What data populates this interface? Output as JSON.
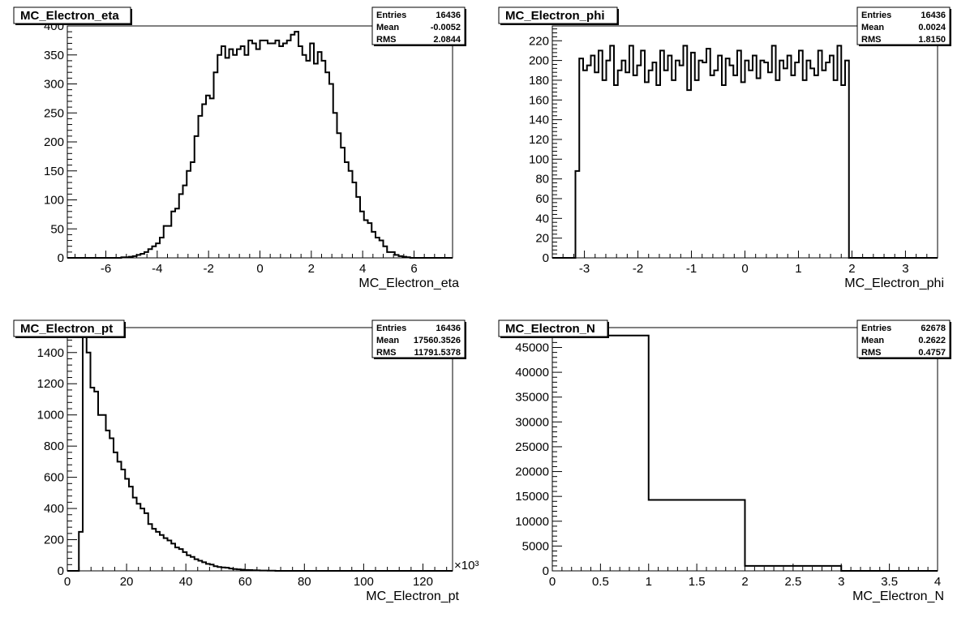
{
  "chart_data": [
    {
      "type": "histogram",
      "title": "MC_Electron_eta",
      "xlabel": "MC_Electron_eta",
      "xlim": [
        -7.5,
        7.5
      ],
      "ylim": [
        0,
        400
      ],
      "xticks": [
        -6,
        -4,
        -2,
        0,
        2,
        4,
        6
      ],
      "yticks": [
        0,
        50,
        100,
        150,
        200,
        250,
        300,
        350,
        400
      ],
      "x_multiplier": "",
      "bin_edges_start": -7.5,
      "bin_width": 0.15,
      "values": [
        0,
        0,
        0,
        0,
        0,
        0,
        0,
        0,
        0,
        0,
        0,
        0,
        0,
        0,
        1,
        1,
        2,
        3,
        5,
        7,
        10,
        15,
        20,
        25,
        35,
        55,
        55,
        80,
        85,
        110,
        125,
        150,
        165,
        210,
        245,
        265,
        280,
        275,
        320,
        350,
        365,
        345,
        360,
        350,
        360,
        365,
        350,
        375,
        370,
        360,
        375,
        375,
        370,
        370,
        375,
        365,
        370,
        375,
        385,
        390,
        365,
        350,
        340,
        370,
        335,
        355,
        340,
        320,
        300,
        250,
        215,
        190,
        165,
        150,
        130,
        105,
        80,
        65,
        60,
        45,
        35,
        30,
        20,
        10,
        10,
        5,
        3,
        2,
        1,
        0,
        0,
        0,
        0,
        0,
        0,
        0,
        0,
        0,
        0,
        0
      ],
      "stats": {
        "labels": [
          "Entries",
          "Mean",
          "RMS"
        ],
        "values": [
          "16436",
          "-0.0052",
          "2.0844"
        ]
      }
    },
    {
      "type": "histogram",
      "title": "MC_Electron_phi",
      "xlabel": "MC_Electron_phi",
      "xlim": [
        -3.6,
        3.6
      ],
      "ylim": [
        0,
        235
      ],
      "xticks": [
        -3,
        -2,
        -1,
        0,
        1,
        2,
        3
      ],
      "yticks": [
        0,
        20,
        40,
        60,
        80,
        100,
        120,
        140,
        160,
        180,
        200,
        220
      ],
      "x_multiplier": "",
      "bin_edges_start": -3.6,
      "bin_width": 0.072,
      "values": [
        0,
        0,
        0,
        0,
        0,
        0,
        88,
        202,
        190,
        195,
        205,
        188,
        210,
        180,
        200,
        215,
        175,
        190,
        200,
        188,
        215,
        185,
        195,
        210,
        178,
        190,
        198,
        175,
        210,
        190,
        205,
        180,
        200,
        195,
        215,
        170,
        208,
        180,
        200,
        198,
        212,
        185,
        190,
        205,
        175,
        202,
        195,
        185,
        210,
        178,
        200,
        190,
        205,
        182,
        200,
        198,
        188,
        215,
        180,
        200,
        192,
        205,
        185,
        198,
        210,
        180,
        200,
        192,
        185,
        210,
        190,
        198,
        205,
        180,
        215,
        175,
        200,
        0,
        0,
        0,
        0,
        0,
        0,
        0,
        0,
        0,
        0,
        0,
        0,
        0,
        0,
        0,
        0,
        0,
        0,
        0,
        0,
        0,
        0,
        0
      ],
      "stats": {
        "labels": [
          "Entries",
          "Mean",
          "RMS"
        ],
        "values": [
          "16436",
          "0.0024",
          "1.8150"
        ]
      }
    },
    {
      "type": "histogram",
      "title": "MC_Electron_pt",
      "xlabel": "MC_Electron_pt",
      "xlim": [
        0,
        130
      ],
      "ylim": [
        0,
        1560
      ],
      "xticks": [
        0,
        20,
        40,
        60,
        80,
        100,
        120
      ],
      "yticks": [
        0,
        200,
        400,
        600,
        800,
        1000,
        1200,
        1400
      ],
      "x_multiplier": "×10³",
      "bin_edges_start": 0,
      "bin_width": 1.3,
      "values": [
        0,
        0,
        0,
        250,
        1525,
        1400,
        1175,
        1150,
        1000,
        1000,
        900,
        850,
        760,
        700,
        650,
        590,
        540,
        470,
        430,
        400,
        370,
        300,
        270,
        250,
        230,
        210,
        195,
        175,
        150,
        140,
        120,
        100,
        90,
        75,
        65,
        55,
        45,
        40,
        30,
        25,
        22,
        20,
        15,
        12,
        10,
        8,
        6,
        5,
        4,
        3,
        2,
        2,
        1,
        1,
        0,
        0,
        0,
        0,
        0,
        0,
        0,
        0,
        0,
        0,
        0,
        0,
        0,
        0,
        0,
        0,
        0,
        0,
        0,
        0,
        0,
        0,
        0,
        0,
        0,
        0,
        0,
        0,
        0,
        0,
        0,
        0,
        0,
        0,
        0,
        0,
        0,
        0,
        0,
        0,
        0,
        0,
        0,
        0,
        0,
        0
      ],
      "stats": {
        "labels": [
          "Entries",
          "Mean",
          "RMS"
        ],
        "values": [
          "16436",
          "17560.3526",
          "11791.5378"
        ]
      }
    },
    {
      "type": "histogram",
      "title": "MC_Electron_N",
      "xlabel": "MC_Electron_N",
      "xlim": [
        0,
        4
      ],
      "ylim": [
        0,
        49000
      ],
      "xticks": [
        0,
        0.5,
        1,
        1.5,
        2,
        2.5,
        3,
        3.5,
        4
      ],
      "yticks": [
        0,
        5000,
        10000,
        15000,
        20000,
        25000,
        30000,
        35000,
        40000,
        45000
      ],
      "x_multiplier": "",
      "bin_edges_start": 0,
      "bin_width": 1,
      "values": [
        47400,
        14300,
        1000,
        0
      ],
      "stats": {
        "labels": [
          "Entries",
          "Mean",
          "RMS"
        ],
        "values": [
          "62678",
          "0.2622",
          "0.4757"
        ]
      }
    }
  ]
}
